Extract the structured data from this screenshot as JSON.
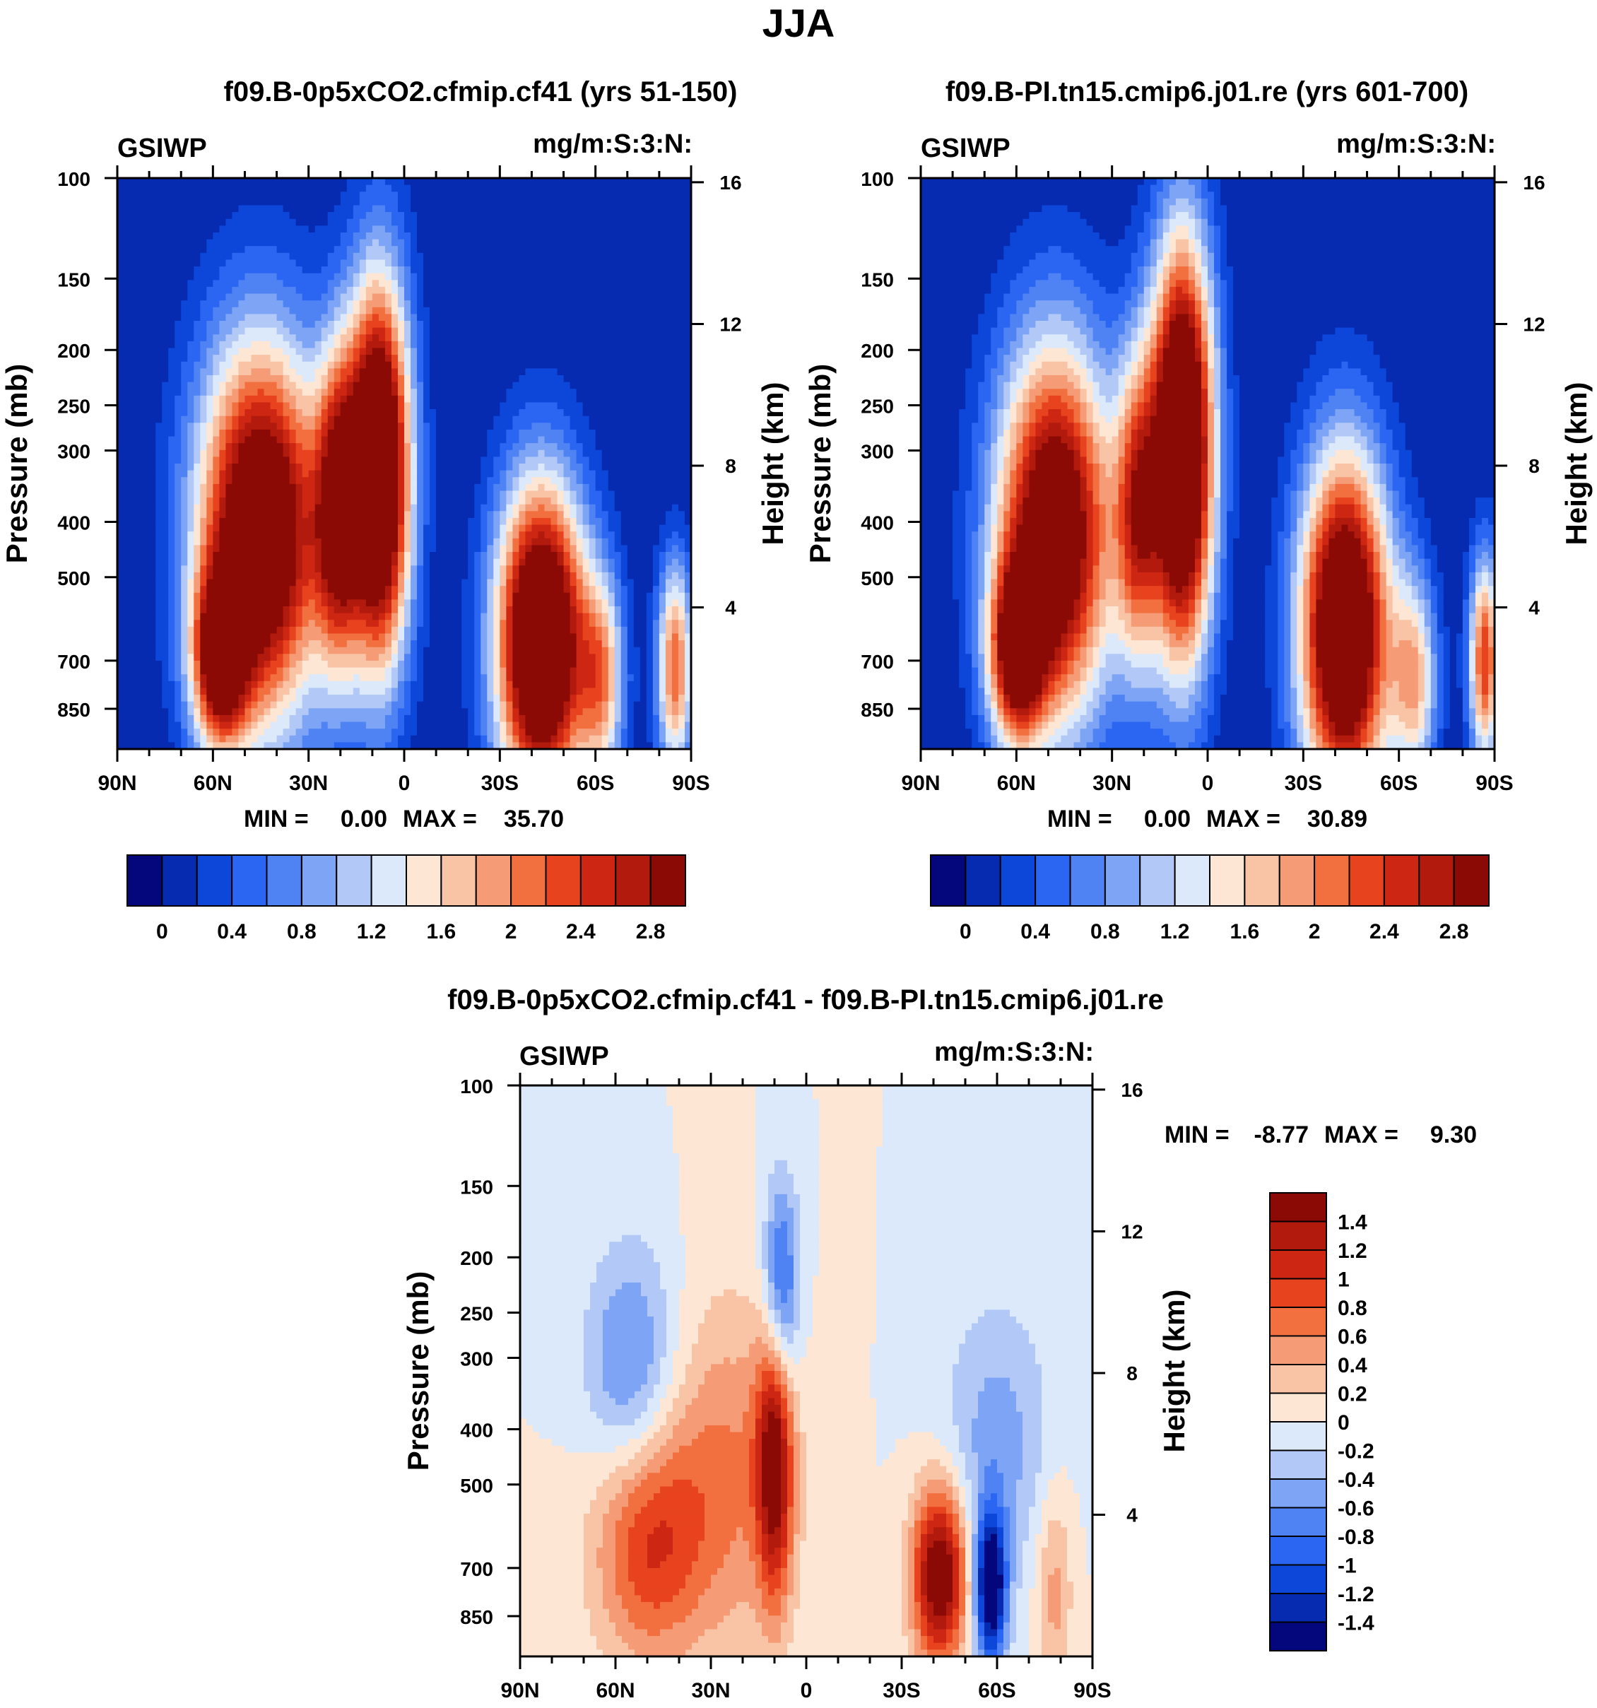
{
  "figure_title": "JJA",
  "colors": {
    "seq_palette": [
      "#04077c",
      "#062ab0",
      "#0d47d9",
      "#2a66f2",
      "#4f83f4",
      "#7ea5f5",
      "#b2c8f7",
      "#dce9fa",
      "#fde6d4",
      "#f9c3a6",
      "#f59c76",
      "#f2703f",
      "#e8431f",
      "#cd2612",
      "#b11a0d",
      "#8b0a05"
    ],
    "diff_palette": [
      "#04077c",
      "#062ab0",
      "#0d47d9",
      "#2a66f2",
      "#4f83f4",
      "#7ea5f5",
      "#b2c8f7",
      "#dce9fa",
      "#fde6d4",
      "#f9c3a6",
      "#f59c76",
      "#f2703f",
      "#e8431f",
      "#cd2612",
      "#b11a0d",
      "#8b0a05"
    ]
  },
  "chart_data": [
    {
      "type": "heatmap",
      "title": "f09.B-0p5xCO2.cfmip.cf41 (yrs 51-150)",
      "variable_label": "GSIWP",
      "units_label": "mg/m:S:3:N:",
      "ylabel": "Pressure (mb)",
      "ylabel_right": "Height (km)",
      "pressure_ticks": [
        "100",
        "150",
        "200",
        "250",
        "300",
        "400",
        "500",
        "700",
        "850"
      ],
      "height_ticks": [
        "16",
        "12",
        "8",
        "4"
      ],
      "x_ticks": [
        "90N",
        "60N",
        "30N",
        "0",
        "30S",
        "60S",
        "90S"
      ],
      "stats": {
        "min_label": "MIN =",
        "min": "0.00",
        "max_label": "MAX =",
        "max": "35.70"
      },
      "colorbar_labels": [
        "0",
        "0.4",
        "0.8",
        "1.2",
        "1.6",
        "2",
        "2.4",
        "2.8"
      ],
      "blobs": [
        {
          "lat": 45,
          "p": 420,
          "amp": 3.8,
          "slat": 14,
          "sp": 0.55
        },
        {
          "lat": 58,
          "p": 700,
          "amp": 2.6,
          "slat": 6,
          "sp": 0.25
        },
        {
          "lat": 21,
          "p": 380,
          "amp": 2.2,
          "slat": 5,
          "sp": 0.45
        },
        {
          "lat": 8,
          "p": 330,
          "amp": 4.2,
          "slat": 7,
          "sp": 0.55
        },
        {
          "lat": -43,
          "p": 650,
          "amp": 4.2,
          "slat": 10,
          "sp": 0.45
        },
        {
          "lat": -62,
          "p": 760,
          "amp": 1.6,
          "slat": 5,
          "sp": 0.3
        },
        {
          "lat": -85,
          "p": 720,
          "amp": 2.2,
          "slat": 4,
          "sp": 0.3
        }
      ]
    },
    {
      "type": "heatmap",
      "title": "f09.B-PI.tn15.cmip6.j01.re (yrs 601-700)",
      "variable_label": "GSIWP",
      "units_label": "mg/m:S:3:N:",
      "ylabel": "Pressure (mb)",
      "ylabel_right": "Height (km)",
      "pressure_ticks": [
        "100",
        "150",
        "200",
        "250",
        "300",
        "400",
        "500",
        "700",
        "850"
      ],
      "height_ticks": [
        "16",
        "12",
        "8",
        "4"
      ],
      "x_ticks": [
        "90N",
        "60N",
        "30N",
        "0",
        "30S",
        "60S",
        "90S"
      ],
      "stats": {
        "min_label": "MIN =",
        "min": "0.00",
        "max_label": "MAX =",
        "max": "30.89"
      },
      "colorbar_labels": [
        "0",
        "0.4",
        "0.8",
        "1.2",
        "1.6",
        "2",
        "2.4",
        "2.8"
      ],
      "blobs": [
        {
          "lat": 48,
          "p": 420,
          "amp": 3.6,
          "slat": 13,
          "sp": 0.55
        },
        {
          "lat": 60,
          "p": 680,
          "amp": 2.6,
          "slat": 6,
          "sp": 0.25
        },
        {
          "lat": 22,
          "p": 380,
          "amp": 2.0,
          "slat": 5,
          "sp": 0.45
        },
        {
          "lat": 8,
          "p": 300,
          "amp": 4.3,
          "slat": 7,
          "sp": 0.6
        },
        {
          "lat": -43,
          "p": 620,
          "amp": 4.0,
          "slat": 10,
          "sp": 0.5
        },
        {
          "lat": -65,
          "p": 760,
          "amp": 1.6,
          "slat": 5,
          "sp": 0.3
        },
        {
          "lat": -87,
          "p": 700,
          "amp": 2.4,
          "slat": 3.5,
          "sp": 0.3
        }
      ]
    },
    {
      "type": "heatmap",
      "title": "f09.B-0p5xCO2.cfmip.cf41 - f09.B-PI.tn15.cmip6.j01.re",
      "variable_label": "GSIWP",
      "units_label": "mg/m:S:3:N:",
      "ylabel": "Pressure (mb)",
      "ylabel_right": "Height (km)",
      "pressure_ticks": [
        "100",
        "150",
        "200",
        "250",
        "300",
        "400",
        "500",
        "700",
        "850"
      ],
      "height_ticks": [
        "16",
        "12",
        "8",
        "4"
      ],
      "x_ticks": [
        "90N",
        "60N",
        "30N",
        "0",
        "30S",
        "60S",
        "90S"
      ],
      "stats": {
        "min_label": "MIN =",
        "min": "-8.77",
        "max_label": "MAX =",
        "max": "9.30"
      },
      "colorbar_labels": [
        "1.4",
        "1.2",
        "1",
        "0.8",
        "0.6",
        "0.4",
        "0.2",
        "0",
        "-0.2",
        "-0.4",
        "-0.6",
        "-0.8",
        "-1",
        "-1.2",
        "-1.4"
      ],
      "blobs": [
        {
          "lat": 55,
          "p": 320,
          "amp": -0.75,
          "slat": 10,
          "sp": 0.35
        },
        {
          "lat": 8,
          "p": 230,
          "amp": -1.1,
          "slat": 4,
          "sp": 0.3
        },
        {
          "lat": 50,
          "p": 620,
          "amp": 1.0,
          "slat": 12,
          "sp": 0.35
        },
        {
          "lat": 25,
          "p": 480,
          "amp": 0.6,
          "slat": 14,
          "sp": 0.5
        },
        {
          "lat": 10,
          "p": 450,
          "amp": 1.5,
          "slat": 4,
          "sp": 0.4
        },
        {
          "lat": -42,
          "p": 720,
          "amp": 1.8,
          "slat": 6,
          "sp": 0.25
        },
        {
          "lat": -58,
          "p": 760,
          "amp": -1.8,
          "slat": 3.5,
          "sp": 0.22
        },
        {
          "lat": -60,
          "p": 420,
          "amp": -0.5,
          "slat": 12,
          "sp": 0.4
        },
        {
          "lat": -78,
          "p": 760,
          "amp": 0.5,
          "slat": 4,
          "sp": 0.3
        }
      ]
    }
  ]
}
